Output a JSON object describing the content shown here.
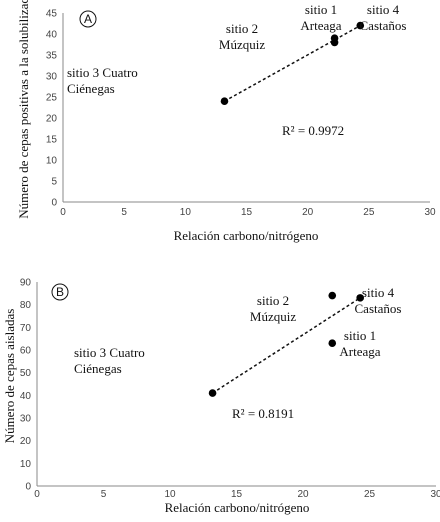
{
  "chart_data": [
    {
      "type": "scatter",
      "badge": "A",
      "xlabel": "Relación carbono/nitrógeno",
      "ylabel": "Número de cepas positivas a la solubilización",
      "xlim": [
        0,
        30
      ],
      "ylim": [
        0,
        45
      ],
      "xticks": [
        0,
        5,
        10,
        15,
        20,
        25,
        30
      ],
      "yticks": [
        0,
        5,
        10,
        15,
        20,
        25,
        30,
        35,
        40,
        45
      ],
      "grid": false,
      "points": [
        {
          "x": 13.2,
          "y": 24,
          "label": [
            "sitio 3 Cuatro",
            "Ciénegas"
          ]
        },
        {
          "x": 22.2,
          "y": 38,
          "label": [
            "sitio 2",
            "Múzquiz"
          ]
        },
        {
          "x": 22.2,
          "y": 39,
          "label": [
            "sitio 1",
            "Arteaga"
          ]
        },
        {
          "x": 24.3,
          "y": 42,
          "label": [
            "sitio 4",
            "Castaños"
          ]
        }
      ],
      "trendline": {
        "x1": 13.2,
        "y1": 24,
        "x2": 24.3,
        "y2": 42
      },
      "r2": "R² = 0.9972"
    },
    {
      "type": "scatter",
      "badge": "B",
      "xlabel": "Relación carbono/nitrógeno",
      "ylabel": "Número de cepas aisladas",
      "xlim": [
        0,
        30
      ],
      "ylim": [
        0,
        90
      ],
      "xticks": [
        0,
        5,
        10,
        15,
        20,
        25,
        30
      ],
      "yticks": [
        0,
        10,
        20,
        30,
        40,
        50,
        60,
        70,
        80,
        90
      ],
      "grid": false,
      "points": [
        {
          "x": 13.2,
          "y": 41,
          "label": [
            "sitio 3 Cuatro",
            "Ciénegas"
          ]
        },
        {
          "x": 22.2,
          "y": 84,
          "label": [
            "sitio 2",
            "Múzquiz"
          ]
        },
        {
          "x": 22.2,
          "y": 63,
          "label": [
            "sitio 1",
            "Arteaga"
          ]
        },
        {
          "x": 24.3,
          "y": 83,
          "label": [
            "sitio 4",
            "Castaños"
          ]
        }
      ],
      "trendline": {
        "x1": 13.2,
        "y1": 41,
        "x2": 24.3,
        "y2": 83
      },
      "r2": "R² = 0.8191"
    }
  ]
}
